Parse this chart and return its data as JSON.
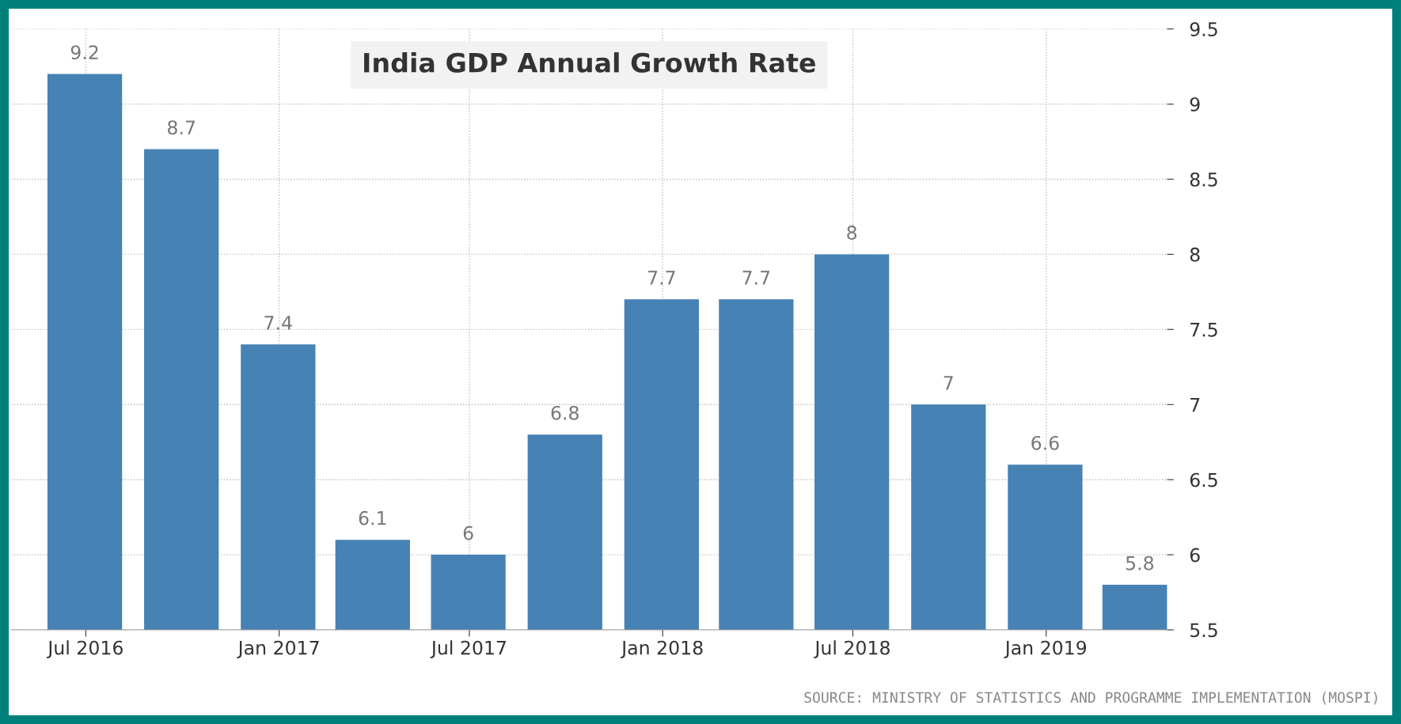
{
  "chart_data": {
    "type": "bar",
    "title": "India GDP Annual Growth Rate",
    "x": [
      "2016-06-30",
      "2016-09-30",
      "2016-12-31",
      "2017-03-31",
      "2017-06-30",
      "2017-09-30",
      "2017-12-31",
      "2018-03-31",
      "2018-06-30",
      "2018-09-30",
      "2018-12-31",
      "2019-03-31"
    ],
    "values": [
      9.2,
      8.7,
      7.4,
      6.1,
      6,
      6.8,
      7.7,
      7.7,
      8,
      7,
      6.6,
      5.8
    ],
    "color": "#4682b4",
    "data_labels": true,
    "xlim": [
      "2016-04-21",
      "2019-04-26"
    ],
    "xticks": [
      {
        "value": "2016-07-01",
        "label": "Jul 2016"
      },
      {
        "value": "2017-01-01",
        "label": "Jan 2017"
      },
      {
        "value": "2017-07-01",
        "label": "Jul 2017"
      },
      {
        "value": "2018-01-01",
        "label": "Jan 2018"
      },
      {
        "value": "2018-07-01",
        "label": "Jul 2018"
      },
      {
        "value": "2019-01-01",
        "label": "Jan 2019"
      }
    ],
    "ylim": [
      5.5,
      9.5
    ],
    "yticks": [
      5.5,
      6,
      6.5,
      7,
      7.5,
      8,
      8.5,
      9,
      9.5
    ],
    "grid": true,
    "annotations": [
      "SOURCE: MINISTRY OF STATISTICS AND PROGRAMME IMPLEMENTATION (MOSPI)"
    ]
  }
}
